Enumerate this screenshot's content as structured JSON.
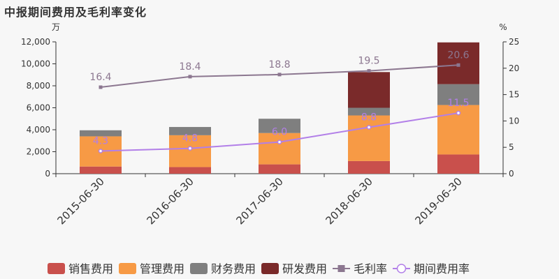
{
  "title": "中报期间费用及毛利率变化",
  "chart_data": {
    "type": "bar",
    "stacked": true,
    "categories": [
      "2015-06-30",
      "2016-06-30",
      "2017-06-30",
      "2018-06-30",
      "2019-06-30"
    ],
    "y_left": {
      "unit": "万",
      "lim": [
        0,
        12000
      ],
      "ticks": [
        "0",
        "2,000",
        "4,000",
        "6,000",
        "8,000",
        "10,000",
        "12,000"
      ]
    },
    "y_right": {
      "unit": "%",
      "lim": [
        0,
        25
      ],
      "ticks": [
        "0",
        "5",
        "10",
        "15",
        "20",
        "25"
      ]
    },
    "series": [
      {
        "name": "销售费用",
        "kind": "bar",
        "color": "#c9504c",
        "values": [
          650,
          600,
          850,
          1150,
          1750
        ]
      },
      {
        "name": "管理费用",
        "kind": "bar",
        "color": "#f79a45",
        "values": [
          2750,
          2900,
          2850,
          4150,
          4500
        ]
      },
      {
        "name": "财务费用",
        "kind": "bar",
        "color": "#7f7f7f",
        "values": [
          550,
          750,
          1300,
          700,
          1900
        ]
      },
      {
        "name": "研发费用",
        "kind": "bar",
        "color": "#7a2a2a",
        "values": [
          0,
          0,
          0,
          3250,
          3800
        ]
      },
      {
        "name": "毛利率",
        "kind": "line",
        "axis": "right",
        "color": "#8c7790",
        "marker": "square",
        "values": [
          16.4,
          18.4,
          18.8,
          19.5,
          20.6
        ],
        "labels": [
          "16.4",
          "18.4",
          "18.8",
          "19.5",
          "20.6"
        ]
      },
      {
        "name": "期间费用率",
        "kind": "line",
        "axis": "right",
        "color": "#b27fe8",
        "marker": "circle",
        "values": [
          4.3,
          4.8,
          6.0,
          8.8,
          11.5
        ],
        "labels": [
          "4.3",
          "4.8",
          "6.0",
          "8.8",
          "11.5"
        ]
      }
    ]
  }
}
